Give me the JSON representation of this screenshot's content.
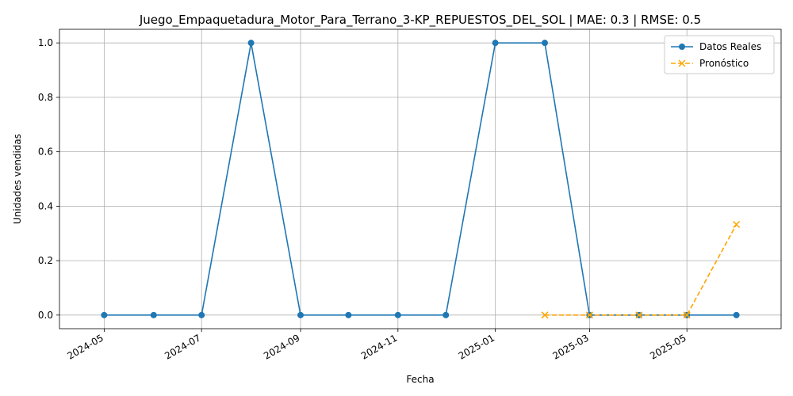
{
  "chart_data": {
    "type": "line",
    "title": "Juego_Empaquetadura_Motor_Para_Terrano_3-KP_REPUESTOS_DEL_SOL | MAE: 0.3 | RMSE: 0.5",
    "xlabel": "Fecha",
    "ylabel": "Unidades vendidas",
    "x_ticks": [
      "2024-05",
      "2024-07",
      "2024-09",
      "2024-11",
      "2025-01",
      "2025-03",
      "2025-05"
    ],
    "y_ticks": [
      "0.0",
      "0.2",
      "0.4",
      "0.6",
      "0.8",
      "1.0"
    ],
    "ylim": [
      -0.05,
      1.05
    ],
    "xlim": [
      "2024-04-03",
      "2025-06-29"
    ],
    "grid": true,
    "legend_position": "top-right",
    "series": [
      {
        "name": "Datos Reales",
        "color": "#1f77b4",
        "line_style": "solid",
        "marker": "circle",
        "x": [
          "2024-05-01",
          "2024-06-01",
          "2024-07-01",
          "2024-08-01",
          "2024-09-01",
          "2024-10-01",
          "2024-11-01",
          "2024-12-01",
          "2025-01-01",
          "2025-02-01",
          "2025-03-01",
          "2025-04-01",
          "2025-05-01",
          "2025-06-01"
        ],
        "values": [
          0,
          0,
          0,
          1,
          0,
          0,
          0,
          0,
          1,
          1,
          0,
          0,
          0,
          0
        ]
      },
      {
        "name": "Pronóstico",
        "color": "#ffa500",
        "line_style": "dashed",
        "marker": "x",
        "x": [
          "2025-02-01",
          "2025-03-01",
          "2025-04-01",
          "2025-05-01",
          "2025-06-01"
        ],
        "values": [
          0.0,
          0.0,
          0.0,
          0.0,
          0.333
        ]
      }
    ]
  }
}
